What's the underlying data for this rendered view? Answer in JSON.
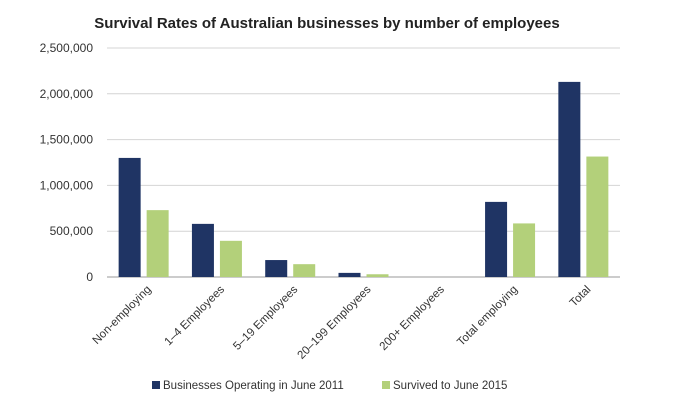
{
  "chart_data": {
    "type": "bar",
    "title": "Survival Rates of Australian businesses by number of employees",
    "categories": [
      "Non-employing",
      "1–4 Employees",
      "5–19 Employees",
      "20–199 Employees",
      "200+ Employees",
      "Total employing",
      "Total"
    ],
    "series": [
      {
        "name": "Businesses Operating in June 2011",
        "color": "#1f3464",
        "values": [
          1300000,
          580000,
          185000,
          45000,
          0,
          820000,
          2130000
        ]
      },
      {
        "name": "Survived to June 2015",
        "color": "#b3d07a",
        "values": [
          730000,
          395000,
          140000,
          30000,
          0,
          585000,
          1315000
        ]
      }
    ],
    "ylim": [
      0,
      2500000
    ],
    "yticks": [
      "0",
      "500,000",
      "1,000,000",
      "1,500,000",
      "2,000,000",
      "2,500,000"
    ],
    "grid": true,
    "legend": "bottom"
  }
}
